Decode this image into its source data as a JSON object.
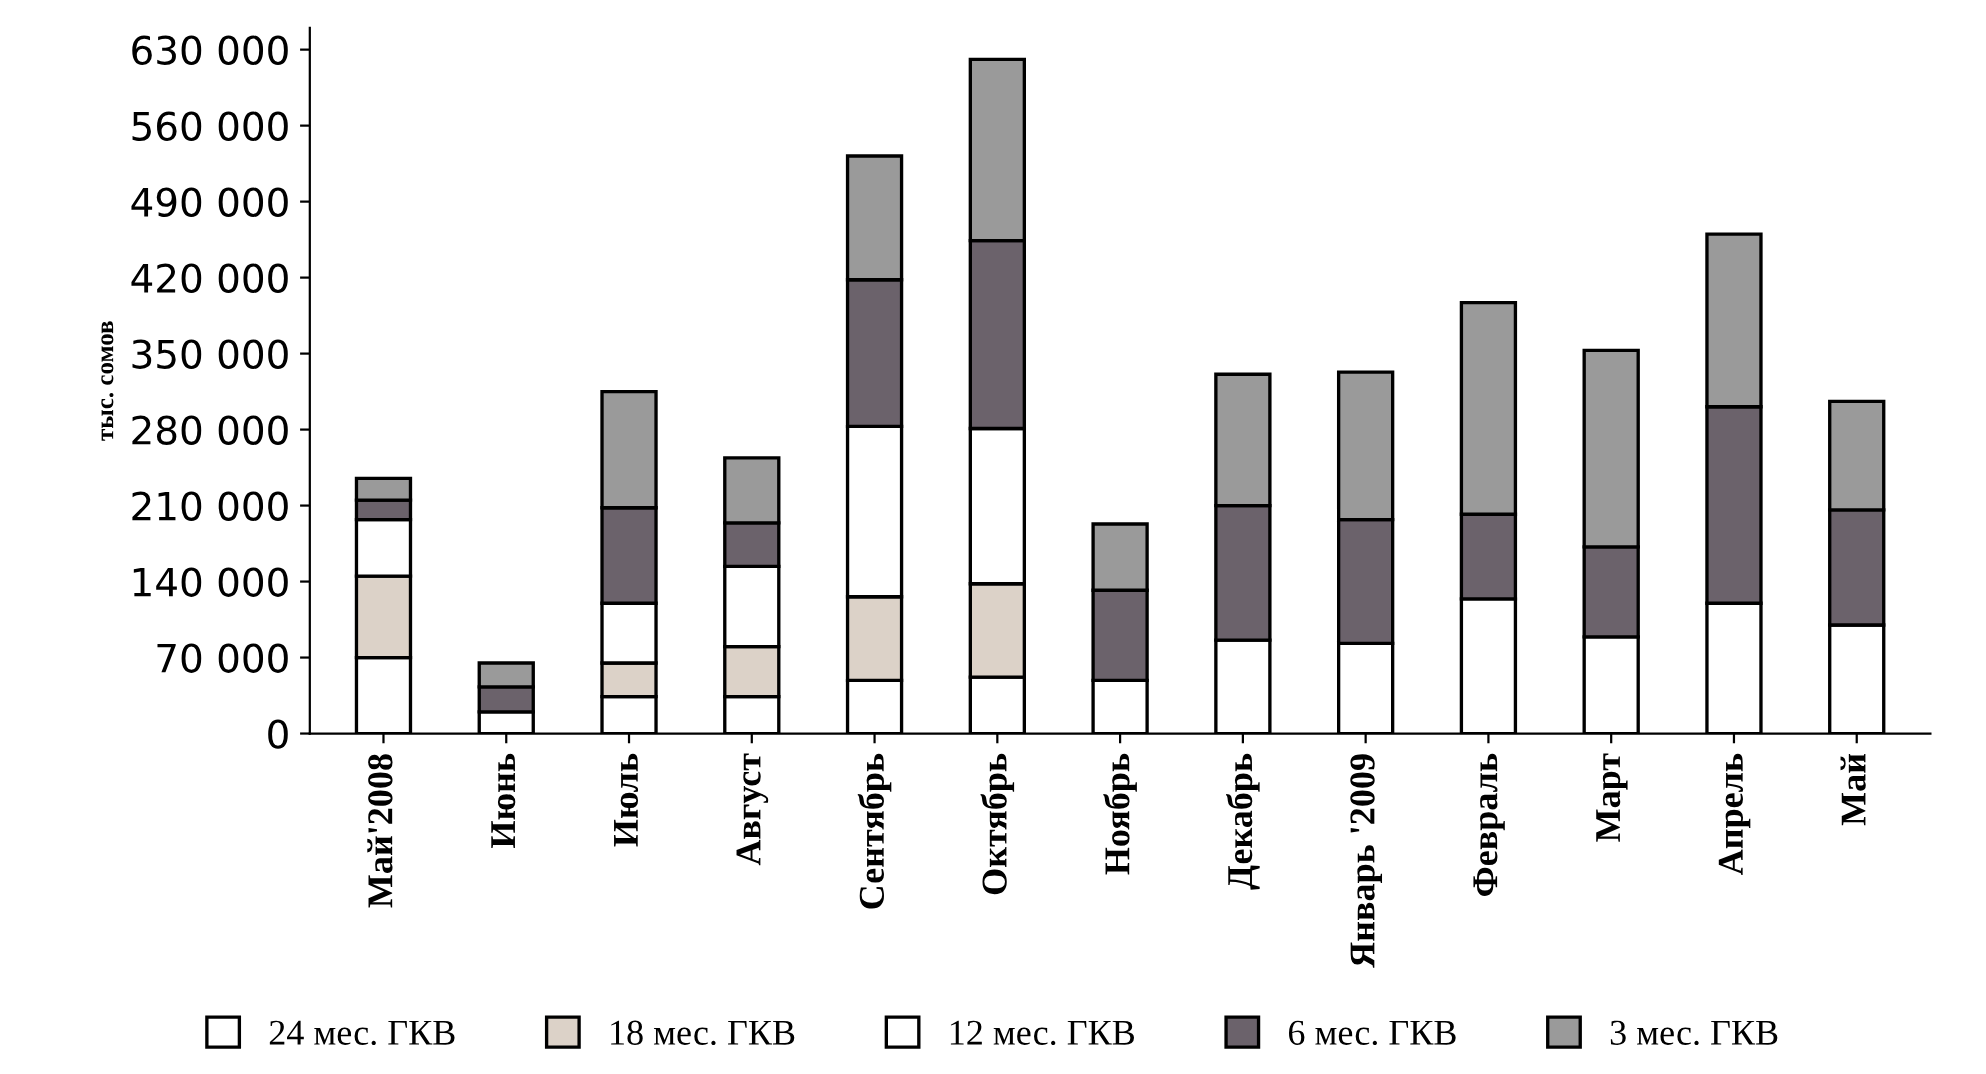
{
  "chart_data": {
    "type": "bar",
    "stacked": true,
    "ylabel": "тыс. сомов",
    "categories": [
      "Май'2008",
      "Июнь",
      "Июль",
      "Август",
      "Сентябрь",
      "Октябрь",
      "Ноябрь",
      "Декабрь",
      "Январь '2009",
      "Февраль",
      "Март",
      "Апрель",
      "Май"
    ],
    "series": [
      {
        "name": "24 мес. ГКВ",
        "color": "#ffffff",
        "values": [
          70000,
          20000,
          34000,
          34000,
          49000,
          52000,
          49000,
          86000,
          83000,
          124000,
          89000,
          120000,
          100000
        ]
      },
      {
        "name": "18 мес. ГКВ",
        "color": "#dcd2c8",
        "values": [
          75000,
          null,
          31000,
          46000,
          77000,
          86000,
          null,
          null,
          null,
          null,
          null,
          null,
          null
        ]
      },
      {
        "name": "12 мес. ГКВ",
        "color": "#ffffff",
        "values": [
          52000,
          null,
          55000,
          74000,
          157000,
          143000,
          null,
          null,
          null,
          null,
          null,
          null,
          null
        ]
      },
      {
        "name": "6 мес. ГКВ",
        "color": "#6b626b",
        "values": [
          18000,
          23000,
          88000,
          40000,
          135000,
          173000,
          83000,
          124000,
          114000,
          78000,
          83000,
          181000,
          106000
        ]
      },
      {
        "name": "3 мес. ГКВ",
        "color": "#9a9a9a",
        "values": [
          20000,
          22000,
          107000,
          60000,
          114000,
          167000,
          61000,
          121000,
          136000,
          195000,
          181000,
          159000,
          100000
        ]
      }
    ],
    "ylim": [
      0,
      650000
    ],
    "yticks": [
      0,
      {
        "value": 70000,
        "label": "70 000"
      },
      {
        "value": 140000,
        "label": "140 000"
      },
      {
        "value": 210000,
        "label": "210 000"
      },
      {
        "value": 280000,
        "label": "280 000"
      },
      {
        "value": 350000,
        "label": "350 000"
      },
      {
        "value": 420000,
        "label": "420 000"
      },
      {
        "value": 490000,
        "label": "490 000"
      },
      {
        "value": 560000,
        "label": "560 000"
      },
      {
        "value": 630000,
        "label": "630 000"
      }
    ],
    "grid": false,
    "legend": "bottom"
  }
}
